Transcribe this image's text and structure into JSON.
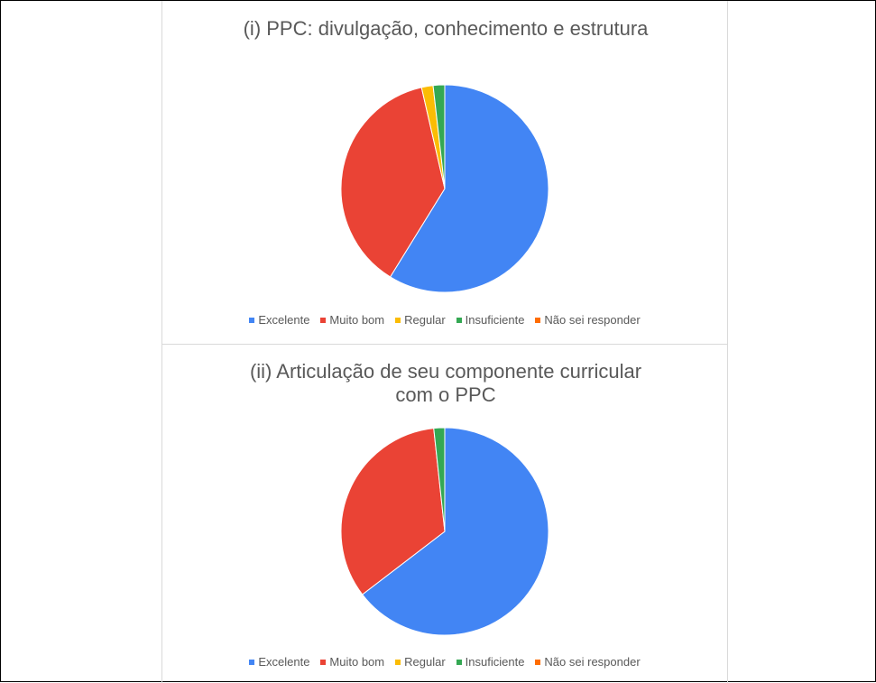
{
  "chart_data": [
    {
      "type": "pie",
      "title": "(i) PPC: divulgação, conhecimento e estrutura",
      "categories": [
        "Excelente",
        "Muito bom",
        "Regular",
        "Insuficiente",
        "Não sei responder"
      ],
      "values": [
        58.8,
        37.6,
        1.8,
        1.8,
        0
      ],
      "colors": [
        "#4285f4",
        "#ea4335",
        "#fbbc04",
        "#34a853",
        "#ff6d01"
      ]
    },
    {
      "type": "pie",
      "title": "(ii) Articulação de seu componente curricular com o PPC",
      "categories": [
        "Excelente",
        "Muito bom",
        "Regular",
        "Insuficiente",
        "Não sei responder"
      ],
      "values": [
        64.6,
        33.7,
        0,
        1.7,
        0
      ],
      "colors": [
        "#4285f4",
        "#ea4335",
        "#fbbc04",
        "#34a853",
        "#ff6d01"
      ]
    }
  ]
}
